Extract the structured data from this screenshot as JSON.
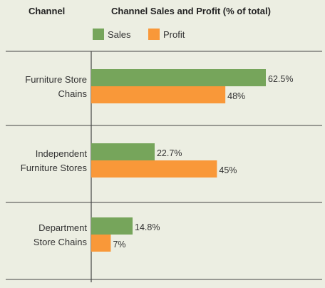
{
  "header": {
    "left_label": "Channel"
  },
  "colors": {
    "background": "#eceee2",
    "sales": "#76a55b",
    "profit": "#f99839",
    "divider": "#444444"
  },
  "chart_data": {
    "type": "bar",
    "orientation": "horizontal",
    "title": "Channel Sales and Profit (% of total)",
    "categories": [
      [
        "Furniture Store",
        "Chains"
      ],
      [
        "Independent",
        "Furniture Stores"
      ],
      [
        "Department",
        "Store Chains"
      ]
    ],
    "series": [
      {
        "name": "Sales",
        "values": [
          62.5,
          22.7,
          14.8
        ],
        "labels": [
          "62.5%",
          "22.7%",
          "14.8%"
        ]
      },
      {
        "name": "Profit",
        "values": [
          48,
          45,
          7
        ],
        "labels": [
          "48%",
          "45%",
          "7%"
        ]
      }
    ],
    "xlim": [
      0,
      100
    ],
    "legend": "top",
    "grid": false
  }
}
